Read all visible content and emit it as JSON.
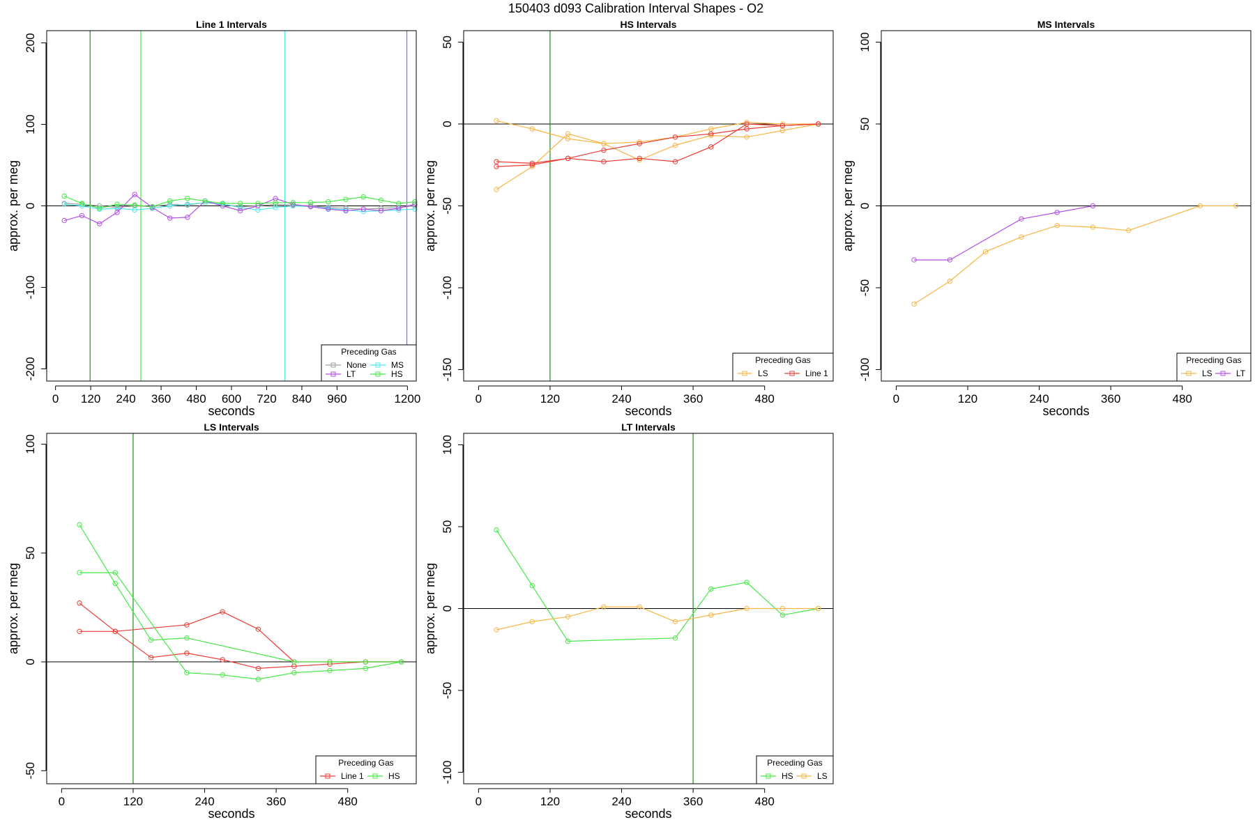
{
  "page_title": "150403   d093   Calibration Interval Shapes - O2",
  "legend_title": "Preceding Gas",
  "colors": {
    "None": "#9e9e9e",
    "MS": "#4de8ea",
    "LT": "#b24fe8",
    "HS": "#44e844",
    "LS": "#f9b443",
    "Line 1": "#ea3a32",
    "zero_line": "#000000",
    "axis": "#000000"
  },
  "chart_data": [
    {
      "type": "line",
      "title": "Line 1 Intervals",
      "xlabel": "seconds",
      "ylabel": "approx. per meg",
      "xlim": [
        -30,
        1230
      ],
      "ylim": [
        -215,
        215
      ],
      "xticks": [
        0,
        120,
        240,
        360,
        480,
        600,
        720,
        840,
        960,
        1200
      ],
      "yticks": [
        -200,
        -100,
        0,
        100,
        200
      ],
      "vlines": [
        {
          "x": 118,
          "color": "#1e8f1e"
        },
        {
          "x": 291,
          "color": "#44e844"
        },
        {
          "x": 782,
          "color": "#4de8ea"
        },
        {
          "x": 1198,
          "color": "#b24fe8"
        }
      ],
      "legend": {
        "columns": 2,
        "entries": [
          "None",
          "MS",
          "LT",
          "HS"
        ]
      },
      "series": [
        {
          "name": "None",
          "x": [
            30,
            90,
            150,
            210,
            270,
            330,
            390,
            450,
            510,
            570,
            630,
            690,
            750,
            810,
            870,
            930,
            990,
            1050,
            1110,
            1170,
            1225
          ],
          "y": [
            3,
            2,
            0,
            -2,
            0,
            -1,
            2,
            1,
            4,
            2,
            -1,
            0,
            2,
            1,
            0,
            -2,
            -3,
            -4,
            -3,
            -2,
            0
          ]
        },
        {
          "name": "MS",
          "x": [
            30,
            90,
            150,
            210,
            270,
            330,
            390,
            450,
            510,
            570,
            630,
            690,
            750,
            810,
            870,
            930,
            990,
            1050,
            1110,
            1170,
            1225
          ],
          "y": [
            2,
            0,
            -4,
            -3,
            -5,
            -3,
            0,
            2,
            4,
            2,
            -2,
            -5,
            -2,
            0,
            -1,
            -3,
            -5,
            -7,
            -6,
            -5,
            -4
          ]
        },
        {
          "name": "LT",
          "x": [
            30,
            90,
            150,
            210,
            270,
            330,
            390,
            450,
            510,
            570,
            630,
            690,
            750,
            810,
            870,
            930,
            990,
            1050,
            1110,
            1170,
            1225
          ],
          "y": [
            -18,
            -12,
            -22,
            -8,
            14,
            -2,
            -15,
            -14,
            6,
            0,
            -6,
            0,
            9,
            2,
            -1,
            -4,
            -6,
            -4,
            -6,
            -3,
            2
          ]
        },
        {
          "name": "HS",
          "x": [
            30,
            90,
            150,
            210,
            270,
            330,
            390,
            450,
            510,
            570,
            630,
            690,
            750,
            810,
            870,
            930,
            990,
            1050,
            1110,
            1170,
            1225
          ],
          "y": [
            12,
            3,
            -3,
            2,
            1,
            -1,
            6,
            9,
            6,
            3,
            3,
            3,
            4,
            4,
            4,
            5,
            8,
            11,
            7,
            3,
            5
          ]
        }
      ]
    },
    {
      "type": "line",
      "title": "HS Intervals",
      "xlabel": "seconds",
      "ylabel": "approx. per meg",
      "xlim": [
        -25,
        595
      ],
      "ylim": [
        -157,
        57
      ],
      "xticks": [
        0,
        120,
        240,
        360,
        480
      ],
      "yticks": [
        -150,
        -100,
        -50,
        0,
        50
      ],
      "vlines": [
        {
          "x": 120,
          "color": "#1e8f1e"
        }
      ],
      "legend": {
        "columns": 2,
        "entries": [
          "LS",
          "Line 1"
        ]
      },
      "series": [
        {
          "name": "LS",
          "x": [
            30,
            90,
            150,
            210,
            270,
            330,
            390,
            450,
            510,
            570
          ],
          "y": [
            2,
            -3,
            -9,
            -12,
            -11,
            -8,
            -3,
            1,
            0,
            0
          ]
        },
        {
          "name": "LS",
          "x": [
            30,
            90,
            150,
            210,
            270,
            330,
            390,
            450,
            510,
            570
          ],
          "y": [
            -40,
            -26,
            -6,
            -12,
            -22,
            -13,
            -7,
            -8,
            -4,
            0
          ]
        },
        {
          "name": "Line 1",
          "x": [
            30,
            90,
            150,
            210,
            270,
            330,
            390,
            450,
            510,
            570
          ],
          "y": [
            -23,
            -24,
            -21,
            -23,
            -21,
            -23,
            -14,
            0,
            -1,
            0
          ]
        },
        {
          "name": "Line 1",
          "x": [
            30,
            90,
            150,
            210,
            270,
            330,
            390,
            450,
            510,
            570
          ],
          "y": [
            -26,
            -25,
            -21,
            -16,
            -12,
            -8,
            -6,
            -3,
            -1,
            0
          ]
        }
      ]
    },
    {
      "type": "line",
      "title": "MS Intervals",
      "xlabel": "seconds",
      "ylabel": "approx. per meg",
      "xlim": [
        -25,
        595
      ],
      "ylim": [
        -107,
        107
      ],
      "xticks": [
        0,
        120,
        240,
        360,
        480
      ],
      "yticks": [
        -100,
        -50,
        0,
        50,
        100
      ],
      "vlines": [],
      "legend": {
        "columns": 2,
        "entries": [
          "LS",
          "LT"
        ]
      },
      "series": [
        {
          "name": "LS",
          "x": [
            30,
            90,
            150,
            210,
            270,
            330,
            390,
            510,
            570
          ],
          "y": [
            -60,
            -46,
            -28,
            -19,
            -12,
            -13,
            -15,
            0,
            0
          ]
        },
        {
          "name": "LT",
          "x": [
            30,
            90,
            210,
            270,
            330
          ],
          "y": [
            -33,
            -33,
            -8,
            -4,
            0
          ]
        }
      ]
    },
    {
      "type": "line",
      "title": "LS Intervals",
      "xlabel": "seconds",
      "ylabel": "approx. per meg",
      "xlim": [
        -25,
        595
      ],
      "ylim": [
        -56,
        105
      ],
      "xticks": [
        0,
        120,
        240,
        360,
        480
      ],
      "yticks": [
        -50,
        0,
        50,
        100
      ],
      "vlines": [
        {
          "x": 120,
          "color": "#1e8f1e"
        }
      ],
      "legend": {
        "columns": 2,
        "entries": [
          "Line 1",
          "HS"
        ]
      },
      "series": [
        {
          "name": "Line 1",
          "x": [
            30,
            90,
            210,
            270,
            330,
            390,
            450,
            510,
            570
          ],
          "y": [
            27,
            14,
            17,
            23,
            15,
            0,
            0,
            0,
            0
          ]
        },
        {
          "name": "Line 1",
          "x": [
            30,
            90,
            150,
            210,
            270,
            330,
            390,
            450,
            510,
            570
          ],
          "y": [
            14,
            14,
            2,
            4,
            1,
            -3,
            -2,
            -1,
            0,
            0
          ]
        },
        {
          "name": "HS",
          "x": [
            30,
            90,
            150,
            210,
            390,
            450,
            510,
            570
          ],
          "y": [
            63,
            36,
            10,
            11,
            0,
            0,
            0,
            0
          ]
        },
        {
          "name": "HS",
          "x": [
            30,
            90,
            210,
            270,
            330,
            390,
            450,
            510,
            570
          ],
          "y": [
            41,
            41,
            -5,
            -6,
            -8,
            -5,
            -4,
            -3,
            0
          ]
        }
      ]
    },
    {
      "type": "line",
      "title": "LT Intervals",
      "xlabel": "seconds",
      "ylabel": "approx. per meg",
      "xlim": [
        -25,
        595
      ],
      "ylim": [
        -107,
        107
      ],
      "xticks": [
        0,
        120,
        240,
        360,
        480
      ],
      "yticks": [
        -100,
        -50,
        0,
        50,
        100
      ],
      "vlines": [
        {
          "x": 360,
          "color": "#1e8f1e"
        }
      ],
      "legend": {
        "columns": 2,
        "entries": [
          "HS",
          "LS"
        ]
      },
      "series": [
        {
          "name": "HS",
          "x": [
            30,
            90,
            150,
            330,
            390,
            450,
            510,
            570
          ],
          "y": [
            48,
            14,
            -20,
            -18,
            12,
            16,
            -4,
            0
          ]
        },
        {
          "name": "LS",
          "x": [
            30,
            90,
            150,
            210,
            270,
            330,
            390,
            450,
            510,
            570
          ],
          "y": [
            -13,
            -8,
            -5,
            1,
            1,
            -8,
            -4,
            0,
            0,
            0
          ]
        }
      ]
    }
  ]
}
